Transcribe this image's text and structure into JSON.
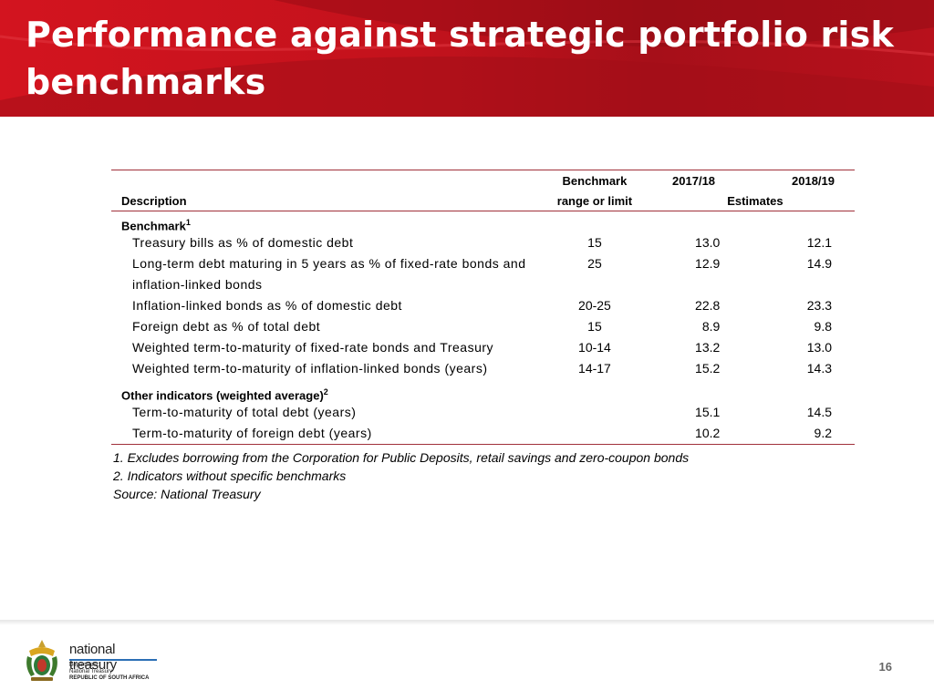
{
  "header": {
    "title": "Performance against strategic portfolio risk benchmarks"
  },
  "table": {
    "columns": {
      "description": "Description",
      "benchmark_line1": "Benchmark",
      "benchmark_line2": "range or limit",
      "year1": "2017/18",
      "year2": "2018/19",
      "estimates": "Estimates"
    },
    "section1": {
      "label": "Benchmark",
      "sup": "1"
    },
    "rows1": [
      {
        "description": "Treasury bills as % of domestic debt",
        "benchmark": "15",
        "y1": "13.0",
        "y2": "12.1"
      },
      {
        "description": "Long-term debt maturing in 5 years as % of fixed-rate bonds and inflation-linked bonds",
        "benchmark": "25",
        "y1": "12.9",
        "y2": "14.9"
      },
      {
        "description": "Inflation-linked bonds as % of domestic debt",
        "benchmark": "20-25",
        "y1": "22.8",
        "y2": "23.3"
      },
      {
        "description": "Foreign debt as % of total debt",
        "benchmark": "15",
        "y1": "8.9",
        "y2": "9.8"
      },
      {
        "description": "Weighted term-to-maturity of fixed-rate bonds and Treasury",
        "benchmark": "10-14",
        "y1": "13.2",
        "y2": "13.0"
      },
      {
        "description": "Weighted term-to-maturity of inflation-linked bonds (years)",
        "benchmark": "14-17",
        "y1": "15.2",
        "y2": "14.3"
      }
    ],
    "section2": {
      "label": "Other indicators (weighted average)",
      "sup": "2"
    },
    "rows2": [
      {
        "description": "Term-to-maturity of total debt (years)",
        "benchmark": "",
        "y1": "15.1",
        "y2": "14.5"
      },
      {
        "description": "Term-to-maturity of foreign debt (years)",
        "benchmark": "",
        "y1": "10.2",
        "y2": "9.2"
      }
    ]
  },
  "notes": [
    "1. Excludes borrowing from the Corporation for Public Deposits, retail savings and zero-coupon bonds",
    "2. Indicators without specific benchmarks",
    "Source: National Treasury"
  ],
  "footer": {
    "logo_name": "national treasury",
    "logo_line1": "Department:",
    "logo_line2": "National Treasury",
    "logo_line3": "REPUBLIC OF SOUTH AFRICA",
    "page_number": "16"
  },
  "colors": {
    "banner": "#c3121c",
    "rule": "#a0303a",
    "logo_accent": "#2b6fb5"
  }
}
